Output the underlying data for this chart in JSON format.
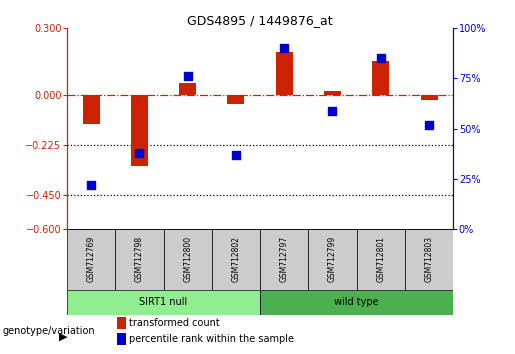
{
  "title": "GDS4895 / 1449876_at",
  "samples": [
    "GSM712769",
    "GSM712798",
    "GSM712800",
    "GSM712802",
    "GSM712797",
    "GSM712799",
    "GSM712801",
    "GSM712803"
  ],
  "groups": [
    "SIRT1 null",
    "SIRT1 null",
    "SIRT1 null",
    "SIRT1 null",
    "wild type",
    "wild type",
    "wild type",
    "wild type"
  ],
  "transformed_counts": [
    -0.13,
    -0.32,
    0.055,
    -0.04,
    0.195,
    0.02,
    0.155,
    -0.02
  ],
  "percentile_ranks": [
    22,
    38,
    76,
    37,
    90,
    59,
    85,
    52
  ],
  "bar_color": "#CC2200",
  "dot_color": "#0000CC",
  "ylim_left": [
    -0.6,
    0.3
  ],
  "ylim_right": [
    0,
    100
  ],
  "yticks_left": [
    0.3,
    0,
    -0.225,
    -0.45,
    -0.6
  ],
  "yticks_right": [
    100,
    75,
    50,
    25,
    0
  ],
  "hline_dotted": [
    -0.225,
    -0.45
  ],
  "sirt1_color": "#90EE90",
  "wild_color": "#4CAF50",
  "sample_box_color": "#cccccc",
  "bar_width": 0.35,
  "dot_size": 28,
  "title_fontsize": 9,
  "tick_fontsize": 7,
  "label_fontsize": 7,
  "legend_tc": "transformed count",
  "legend_pr": "percentile rank within the sample",
  "genotype_label": "genotype/variation"
}
